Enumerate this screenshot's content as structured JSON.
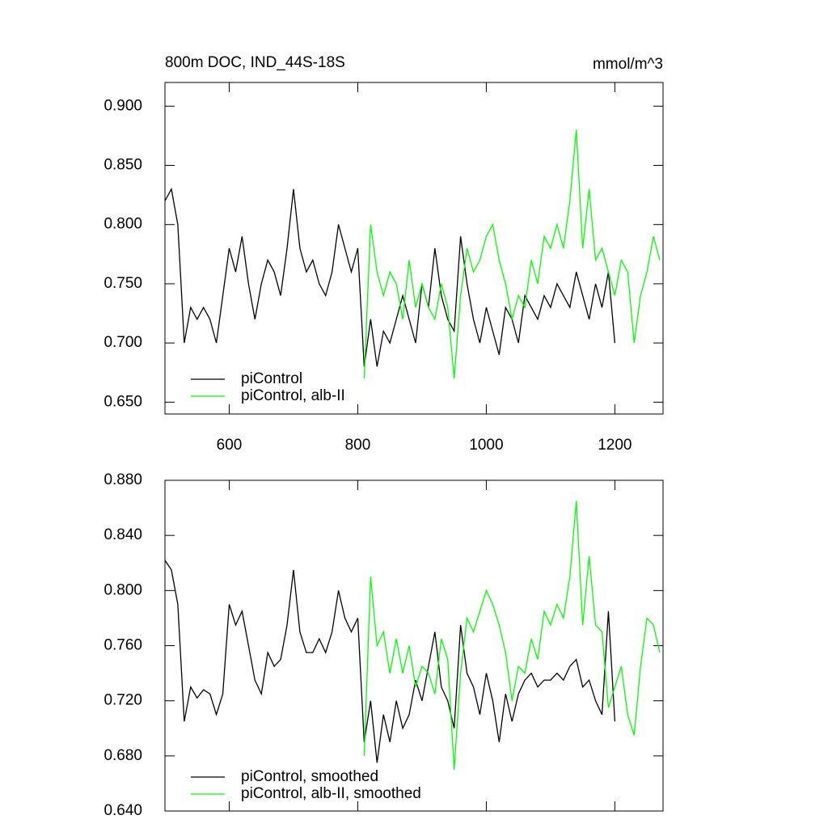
{
  "chart_data": [
    {
      "type": "line",
      "title": "800m DOC, IND_44S-18S",
      "units": "mmol/m^3",
      "x": [
        500,
        510,
        520,
        530,
        540,
        550,
        560,
        570,
        580,
        590,
        600,
        610,
        620,
        630,
        640,
        650,
        660,
        670,
        680,
        690,
        700,
        710,
        720,
        730,
        740,
        750,
        760,
        770,
        780,
        790,
        800,
        810,
        820,
        830,
        840,
        850,
        860,
        870,
        880,
        890,
        900,
        910,
        920,
        930,
        940,
        950,
        960,
        970,
        980,
        990,
        1000,
        1010,
        1020,
        1030,
        1040,
        1050,
        1060,
        1070,
        1080,
        1090,
        1100,
        1110,
        1120,
        1130,
        1140,
        1150,
        1160,
        1170,
        1180,
        1190,
        1200,
        1210,
        1220,
        1230,
        1240,
        1250,
        1260,
        1270
      ],
      "series": [
        {
          "name": "piControl",
          "color": "#000000",
          "values": [
            0.82,
            0.83,
            0.8,
            0.7,
            0.73,
            0.72,
            0.73,
            0.72,
            0.7,
            0.74,
            0.78,
            0.76,
            0.79,
            0.75,
            0.72,
            0.75,
            0.77,
            0.76,
            0.74,
            0.78,
            0.83,
            0.78,
            0.76,
            0.77,
            0.75,
            0.74,
            0.76,
            0.8,
            0.78,
            0.76,
            0.78,
            0.68,
            0.72,
            0.68,
            0.71,
            0.7,
            0.72,
            0.74,
            0.72,
            0.7,
            0.75,
            0.73,
            0.78,
            0.74,
            0.72,
            0.71,
            0.79,
            0.75,
            0.72,
            0.7,
            0.73,
            0.71,
            0.69,
            0.73,
            0.72,
            0.7,
            0.74,
            0.73,
            0.72,
            0.74,
            0.73,
            0.75,
            0.74,
            0.73,
            0.76,
            0.74,
            0.72,
            0.75,
            0.73,
            0.76,
            0.7,
            null,
            null,
            null,
            null,
            null,
            null,
            null
          ]
        },
        {
          "name": "piControl, alb-II",
          "color": "#00ff00",
          "values": [
            null,
            null,
            null,
            null,
            null,
            null,
            null,
            null,
            null,
            null,
            null,
            null,
            null,
            null,
            null,
            null,
            null,
            null,
            null,
            null,
            null,
            null,
            null,
            null,
            null,
            null,
            null,
            null,
            null,
            null,
            null,
            0.67,
            0.8,
            0.76,
            0.74,
            0.76,
            0.75,
            0.72,
            0.77,
            0.73,
            0.75,
            0.73,
            0.72,
            0.75,
            0.73,
            0.67,
            0.74,
            0.78,
            0.76,
            0.77,
            0.79,
            0.8,
            0.77,
            0.75,
            0.72,
            0.74,
            0.73,
            0.77,
            0.75,
            0.79,
            0.78,
            0.8,
            0.78,
            0.82,
            0.88,
            0.78,
            0.83,
            0.77,
            0.78,
            0.76,
            0.74,
            0.77,
            0.76,
            0.7,
            0.74,
            0.76,
            0.79,
            0.77
          ]
        }
      ],
      "xlim": [
        500,
        1275
      ],
      "xticks": [
        600,
        800,
        1000,
        1200
      ],
      "ylim": [
        0.64,
        0.92
      ],
      "yticks": [
        {
          "value": 0.65,
          "label": "0.650"
        },
        {
          "value": 0.7,
          "label": "0.700"
        },
        {
          "value": 0.75,
          "label": "0.750"
        },
        {
          "value": 0.8,
          "label": "0.800"
        },
        {
          "value": 0.85,
          "label": "0.850"
        },
        {
          "value": 0.9,
          "label": "0.900"
        }
      ]
    },
    {
      "type": "line",
      "x": [
        500,
        510,
        520,
        530,
        540,
        550,
        560,
        570,
        580,
        590,
        600,
        610,
        620,
        630,
        640,
        650,
        660,
        670,
        680,
        690,
        700,
        710,
        720,
        730,
        740,
        750,
        760,
        770,
        780,
        790,
        800,
        810,
        820,
        830,
        840,
        850,
        860,
        870,
        880,
        890,
        900,
        910,
        920,
        930,
        940,
        950,
        960,
        970,
        980,
        990,
        1000,
        1010,
        1020,
        1030,
        1040,
        1050,
        1060,
        1070,
        1080,
        1090,
        1100,
        1110,
        1120,
        1130,
        1140,
        1150,
        1160,
        1170,
        1180,
        1190,
        1200,
        1210,
        1220,
        1230,
        1240,
        1250,
        1260,
        1270
      ],
      "series": [
        {
          "name": "piControl, smoothed",
          "color": "#000000",
          "values": [
            0.822,
            0.815,
            0.79,
            0.705,
            0.73,
            0.722,
            0.728,
            0.725,
            0.71,
            0.725,
            0.79,
            0.775,
            0.785,
            0.76,
            0.735,
            0.725,
            0.755,
            0.745,
            0.75,
            0.775,
            0.815,
            0.77,
            0.755,
            0.755,
            0.765,
            0.755,
            0.77,
            0.8,
            0.78,
            0.77,
            0.78,
            0.69,
            0.72,
            0.675,
            0.71,
            0.69,
            0.72,
            0.7,
            0.71,
            0.735,
            0.72,
            0.745,
            0.77,
            0.73,
            0.72,
            0.7,
            0.775,
            0.74,
            0.73,
            0.71,
            0.74,
            0.72,
            0.69,
            0.725,
            0.705,
            0.725,
            0.735,
            0.74,
            0.73,
            0.735,
            0.735,
            0.74,
            0.735,
            0.745,
            0.75,
            0.73,
            0.735,
            0.72,
            0.71,
            0.785,
            0.705,
            null,
            null,
            null,
            null,
            null,
            null,
            null
          ]
        },
        {
          "name": "piControl, alb-II, smoothed",
          "color": "#00ff00",
          "values": [
            null,
            null,
            null,
            null,
            null,
            null,
            null,
            null,
            null,
            null,
            null,
            null,
            null,
            null,
            null,
            null,
            null,
            null,
            null,
            null,
            null,
            null,
            null,
            null,
            null,
            null,
            null,
            null,
            null,
            null,
            null,
            0.68,
            0.81,
            0.76,
            0.77,
            0.74,
            0.765,
            0.74,
            0.76,
            0.73,
            0.745,
            0.74,
            0.725,
            0.765,
            0.75,
            0.67,
            0.74,
            0.78,
            0.77,
            0.785,
            0.8,
            0.79,
            0.775,
            0.755,
            0.72,
            0.745,
            0.74,
            0.765,
            0.75,
            0.785,
            0.775,
            0.79,
            0.78,
            0.81,
            0.865,
            0.775,
            0.825,
            0.775,
            0.77,
            0.715,
            0.73,
            0.745,
            0.71,
            0.695,
            0.745,
            0.78,
            0.775,
            0.755
          ]
        }
      ],
      "xlim": [
        500,
        1275
      ],
      "xticks": [
        600,
        800,
        1000,
        1200
      ],
      "ylim": [
        0.64,
        0.88
      ],
      "yticks": [
        {
          "value": 0.64,
          "label": "0.640"
        },
        {
          "value": 0.68,
          "label": "0.680"
        },
        {
          "value": 0.72,
          "label": "0.720"
        },
        {
          "value": 0.76,
          "label": "0.760"
        },
        {
          "value": 0.8,
          "label": "0.800"
        },
        {
          "value": 0.84,
          "label": "0.840"
        },
        {
          "value": 0.88,
          "label": "0.880"
        }
      ]
    }
  ]
}
